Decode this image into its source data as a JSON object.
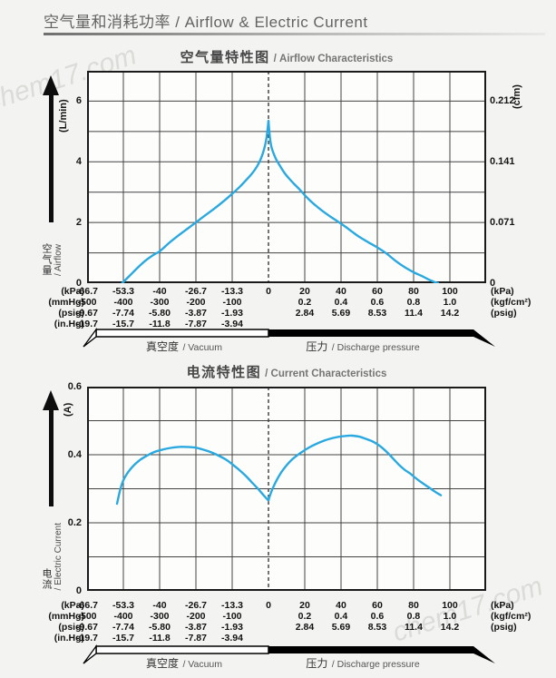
{
  "page": {
    "watermark_text": "chem17.com"
  },
  "header": {
    "title": "空气量和消耗功率 / Airflow & Electric Current"
  },
  "bar": {
    "vacuum_zh": "真空度",
    "vacuum_en": "/ Vacuum",
    "pressure_zh": "压力",
    "pressure_en": "/ Discharge pressure"
  },
  "x_axis": {
    "col_count": 11,
    "zero_col": 5,
    "rows": [
      {
        "left_unit": "(kPa)",
        "right_unit": "(kPa)",
        "labels": [
          {
            "col": 0,
            "t": "-66.7"
          },
          {
            "col": 1,
            "t": "-53.3"
          },
          {
            "col": 2,
            "t": "-40"
          },
          {
            "col": 3,
            "t": "-26.7"
          },
          {
            "col": 4,
            "t": "-13.3"
          },
          {
            "col": 5,
            "t": "0"
          },
          {
            "col": 6,
            "t": "20"
          },
          {
            "col": 7,
            "t": "40"
          },
          {
            "col": 8,
            "t": "60"
          },
          {
            "col": 9,
            "t": "80"
          },
          {
            "col": 10,
            "t": "100"
          }
        ]
      },
      {
        "left_unit": "(mmHg)",
        "right_unit": "(kgf/cm²)",
        "labels": [
          {
            "col": 0,
            "t": "-500"
          },
          {
            "col": 1,
            "t": "-400"
          },
          {
            "col": 2,
            "t": "-300"
          },
          {
            "col": 3,
            "t": "-200"
          },
          {
            "col": 4,
            "t": "-100"
          },
          {
            "col": 6,
            "t": "0.2"
          },
          {
            "col": 7,
            "t": "0.4"
          },
          {
            "col": 8,
            "t": "0.6"
          },
          {
            "col": 9,
            "t": "0.8"
          },
          {
            "col": 10,
            "t": "1.0"
          }
        ]
      },
      {
        "left_unit": "(psig)",
        "right_unit": "(psig)",
        "labels": [
          {
            "col": 0,
            "t": "-9.67"
          },
          {
            "col": 1,
            "t": "-7.74"
          },
          {
            "col": 2,
            "t": "-5.80"
          },
          {
            "col": 3,
            "t": "-3.87"
          },
          {
            "col": 4,
            "t": "-1.93"
          },
          {
            "col": 6,
            "t": "2.84"
          },
          {
            "col": 7,
            "t": "5.69"
          },
          {
            "col": 8,
            "t": "8.53"
          },
          {
            "col": 9,
            "t": "11.4"
          },
          {
            "col": 10,
            "t": "14.2"
          }
        ]
      },
      {
        "left_unit": "(in.Hg)",
        "right_unit": "",
        "labels": [
          {
            "col": 0,
            "t": "-19.7"
          },
          {
            "col": 1,
            "t": "-15.7"
          },
          {
            "col": 2,
            "t": "-11.8"
          },
          {
            "col": 3,
            "t": "-7.87"
          },
          {
            "col": 4,
            "t": "-3.94"
          }
        ]
      }
    ]
  },
  "chart_data": [
    {
      "type": "line",
      "title_zh": "空气量特性图",
      "title_en": "/ Airflow Characteristics",
      "ylabel_zh": "空气量",
      "ylabel_en": "/ Airflow",
      "x_unit": "kPa",
      "xlim": [
        -66.7,
        120
      ],
      "x_gridstep_vacuum": 13.34,
      "x_gridstep_pressure": 20,
      "grid": true,
      "y_left": {
        "unit": "(L/min)",
        "lim": [
          0,
          7
        ],
        "ticks": [
          6,
          4,
          2,
          0
        ]
      },
      "y_right": {
        "unit": "(cfm)",
        "lim": [
          0,
          0.247
        ],
        "ticks": [
          0.212,
          0.141,
          0.071,
          0
        ]
      },
      "series": [
        {
          "name": "airflow",
          "color": "#29A9E0",
          "segments": [
            [
              [
                -53.8,
                0
              ],
              [
                -51,
                0.25
              ],
              [
                -48,
                0.52
              ],
              [
                -45,
                0.76
              ],
              [
                -42,
                0.95
              ],
              [
                -40,
                1.05
              ],
              [
                -36.5,
                1.33
              ],
              [
                -33,
                1.58
              ],
              [
                -30,
                1.78
              ],
              [
                -26.7,
                2.0
              ],
              [
                -23.5,
                2.22
              ],
              [
                -20,
                2.45
              ],
              [
                -16.5,
                2.7
              ],
              [
                -13.3,
                2.95
              ],
              [
                -10.5,
                3.18
              ],
              [
                -8,
                3.42
              ],
              [
                -6,
                3.62
              ],
              [
                -4.2,
                3.85
              ],
              [
                -2.8,
                4.1
              ],
              [
                -1.6,
                4.42
              ],
              [
                -0.7,
                4.8
              ],
              [
                0,
                5.35
              ]
            ],
            [
              [
                0,
                5.35
              ],
              [
                0.7,
                4.85
              ],
              [
                1.6,
                4.5
              ],
              [
                3,
                4.25
              ],
              [
                4.5,
                4.05
              ],
              [
                6.5,
                3.85
              ],
              [
                9,
                3.62
              ],
              [
                11.5,
                3.44
              ],
              [
                14,
                3.28
              ],
              [
                17,
                3.1
              ],
              [
                20,
                2.9
              ],
              [
                23,
                2.72
              ],
              [
                26,
                2.56
              ],
              [
                30,
                2.37
              ],
              [
                34,
                2.2
              ],
              [
                38,
                2.04
              ],
              [
                42,
                1.88
              ],
              [
                46,
                1.7
              ],
              [
                50,
                1.53
              ],
              [
                55,
                1.35
              ],
              [
                60,
                1.18
              ],
              [
                65,
                0.98
              ],
              [
                70,
                0.74
              ],
              [
                75,
                0.53
              ],
              [
                80,
                0.36
              ],
              [
                84,
                0.25
              ],
              [
                88,
                0.13
              ],
              [
                91,
                0.05
              ],
              [
                93.5,
                0
              ]
            ]
          ]
        }
      ]
    },
    {
      "type": "line",
      "title_zh": "电流特性图",
      "title_en": "/ Current Characteristics",
      "ylabel_zh": "电流",
      "ylabel_en": "/ Electric Current",
      "x_unit": "kPa",
      "xlim": [
        -66.7,
        120
      ],
      "x_gridstep_vacuum": 13.34,
      "x_gridstep_pressure": 20,
      "grid": true,
      "y_left": {
        "unit": "(A)",
        "lim": [
          0,
          0.6
        ],
        "ticks": [
          0.6,
          0.4,
          0.2,
          0
        ]
      },
      "series": [
        {
          "name": "electric-current",
          "color": "#29A9E0",
          "segments": [
            [
              [
                -55.7,
                0.256
              ],
              [
                -54.5,
                0.298
              ],
              [
                -53.3,
                0.326
              ],
              [
                -51.5,
                0.35
              ],
              [
                -49.5,
                0.369
              ],
              [
                -47,
                0.386
              ],
              [
                -44.5,
                0.398
              ],
              [
                -42,
                0.408
              ],
              [
                -39,
                0.415
              ],
              [
                -36,
                0.42
              ],
              [
                -33,
                0.423
              ],
              [
                -30,
                0.423
              ],
              [
                -27,
                0.421
              ],
              [
                -24,
                0.415
              ],
              [
                -21,
                0.407
              ],
              [
                -18,
                0.396
              ],
              [
                -15.5,
                0.385
              ],
              [
                -13.3,
                0.372
              ],
              [
                -11,
                0.357
              ],
              [
                -8.5,
                0.339
              ],
              [
                -6,
                0.318
              ],
              [
                -4,
                0.301
              ],
              [
                -2,
                0.283
              ],
              [
                -0.8,
                0.272
              ],
              [
                0,
                0.266
              ]
            ],
            [
              [
                0,
                0.266
              ],
              [
                1,
                0.283
              ],
              [
                2.5,
                0.303
              ],
              [
                4.5,
                0.325
              ],
              [
                7,
                0.348
              ],
              [
                10,
                0.369
              ],
              [
                13,
                0.386
              ],
              [
                16,
                0.399
              ],
              [
                19,
                0.41
              ],
              [
                22,
                0.42
              ],
              [
                26,
                0.431
              ],
              [
                30,
                0.44
              ],
              [
                34,
                0.447
              ],
              [
                38,
                0.452
              ],
              [
                42,
                0.455
              ],
              [
                46,
                0.456
              ],
              [
                50,
                0.453
              ],
              [
                53.5,
                0.447
              ],
              [
                57,
                0.44
              ],
              [
                60,
                0.431
              ],
              [
                63,
                0.419
              ],
              [
                66,
                0.404
              ],
              [
                69,
                0.387
              ],
              [
                72,
                0.37
              ],
              [
                75,
                0.356
              ],
              [
                78,
                0.345
              ],
              [
                81,
                0.332
              ],
              [
                84,
                0.32
              ],
              [
                87,
                0.309
              ],
              [
                90,
                0.298
              ],
              [
                92.5,
                0.289
              ],
              [
                95,
                0.281
              ]
            ]
          ]
        }
      ]
    }
  ]
}
